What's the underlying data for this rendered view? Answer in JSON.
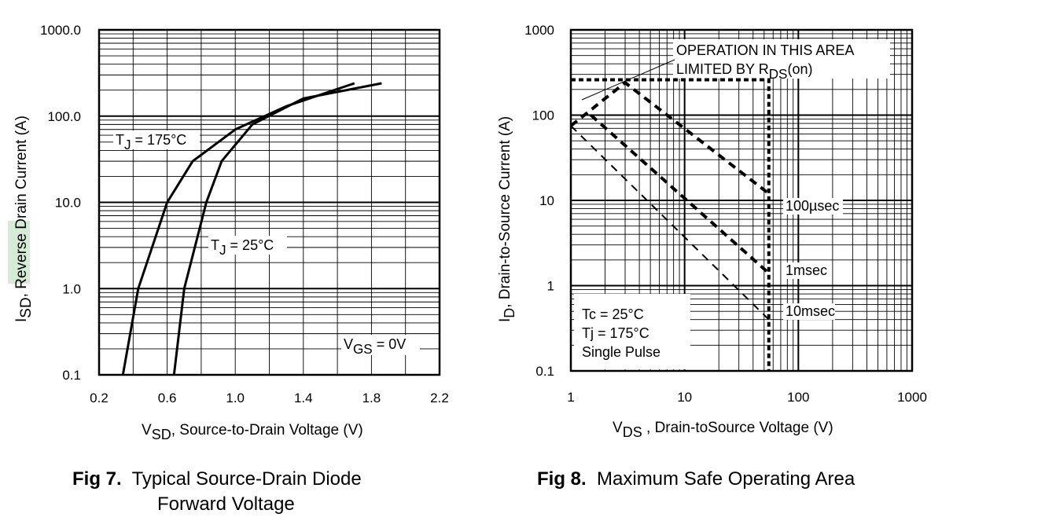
{
  "fig7": {
    "caption_number": "Fig 7.",
    "caption_line1": "Typical Source-Drain Diode",
    "caption_line2": "Forward Voltage",
    "chart_data": {
      "type": "line",
      "ylog": true,
      "xlim": [
        0.2,
        2.2
      ],
      "ylim": [
        0.1,
        1000
      ],
      "x_ticks": [
        "0.2",
        "0.6",
        "1.0",
        "1.4",
        "1.8",
        "2.2"
      ],
      "y_ticks": [
        "0.1",
        "1.0",
        "10.0",
        "100.0",
        "1000.0"
      ],
      "ylabel": {
        "main": "I",
        "sub": "SD",
        "rest_before": ", ",
        "highlight": "Reverse",
        "rest_after": " Drain Current (A)"
      },
      "xlabel": {
        "main": "V",
        "sub": "SD",
        "rest": ", Source-to-Drain Voltage (V)"
      },
      "annotation": {
        "main": "V",
        "sub": "GS",
        "rest": " = 0V"
      },
      "series": [
        {
          "label": {
            "main": "T",
            "sub": "J",
            "rest": " = 175°C"
          },
          "points": [
            [
              0.34,
              0.1
            ],
            [
              0.43,
              1.0
            ],
            [
              0.6,
              10
            ],
            [
              0.75,
              30
            ],
            [
              1.0,
              70
            ],
            [
              1.3,
              130
            ],
            [
              1.7,
              240
            ]
          ]
        },
        {
          "label": {
            "main": "T",
            "sub": "J",
            "rest": " = 25°C"
          },
          "points": [
            [
              0.64,
              0.1
            ],
            [
              0.7,
              1.0
            ],
            [
              0.83,
              10
            ],
            [
              0.92,
              30
            ],
            [
              1.1,
              80
            ],
            [
              1.4,
              160
            ],
            [
              1.86,
              240
            ]
          ]
        }
      ],
      "grid": true
    }
  },
  "fig8": {
    "caption_number": "Fig 8.",
    "caption_text": "Maximum Safe Operating Area",
    "chart_data": {
      "type": "line",
      "xlog": true,
      "ylog": true,
      "xlim": [
        1,
        1000
      ],
      "ylim": [
        0.1,
        1000
      ],
      "x_ticks": [
        "1",
        "10",
        "100",
        "1000"
      ],
      "y_ticks": [
        "0.1",
        "1",
        "10",
        "100",
        "1000"
      ],
      "ylabel": {
        "main": "I",
        "sub": "D",
        "rest": ",  Drain-to-Source Current (A)"
      },
      "xlabel": {
        "main": "V",
        "sub": "DS",
        "rest": " , Drain-toSource Voltage (V)"
      },
      "rds_note": {
        "line1": "OPERATION IN THIS AREA",
        "line2_main": "LIMITED BY R",
        "line2_sub": "DS",
        "line2_rest": "(on)"
      },
      "conditions": [
        "Tc = 25°C",
        "Tj = 175°C",
        "Single Pulse"
      ],
      "limit_current": 260,
      "limit_voltage": 55,
      "series": [
        {
          "name": "100µsec",
          "points": [
            [
              1,
              75
            ],
            [
              3,
              240
            ],
            [
              55,
              12
            ]
          ]
        },
        {
          "name": "1msec",
          "points": [
            [
              1.5,
              100
            ],
            [
              55,
              1.4
            ]
          ]
        },
        {
          "name": "10msec",
          "points": [
            [
              1,
              75
            ],
            [
              55,
              0.4
            ]
          ]
        }
      ],
      "grid": true
    }
  }
}
